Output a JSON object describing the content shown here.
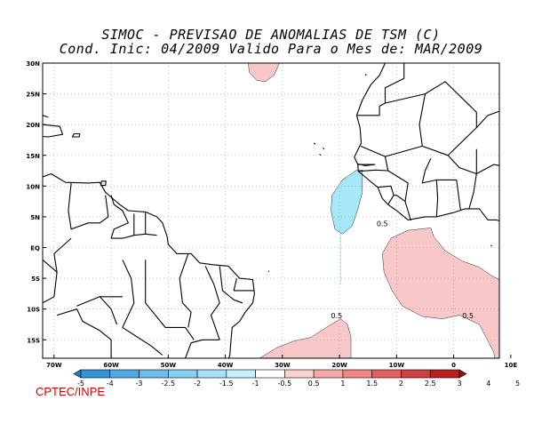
{
  "title": {
    "line1": "SIMOC - PREVISAO DE ANOMALIAS DE TSM (C)",
    "line2": "Cond. Inic: 04/2009   Valido Para o Mes de: MAR/2009"
  },
  "map": {
    "lon_range": [
      -72,
      8
    ],
    "lat_range": [
      -18,
      30
    ],
    "lat_ticks": [
      {
        "v": 30,
        "label": "30N"
      },
      {
        "v": 25,
        "label": "25N"
      },
      {
        "v": 20,
        "label": "20N"
      },
      {
        "v": 15,
        "label": "15N"
      },
      {
        "v": 10,
        "label": "10N"
      },
      {
        "v": 5,
        "label": "5N"
      },
      {
        "v": 0,
        "label": "EQ"
      },
      {
        "v": -5,
        "label": "5S"
      },
      {
        "v": -10,
        "label": "10S"
      },
      {
        "v": -15,
        "label": "15S"
      }
    ],
    "lon_ticks": [
      {
        "v": -70,
        "label": "70W"
      },
      {
        "v": -60,
        "label": "60W"
      },
      {
        "v": -50,
        "label": "50W"
      },
      {
        "v": -40,
        "label": "40W"
      },
      {
        "v": -30,
        "label": "30W"
      },
      {
        "v": -20,
        "label": "20W"
      },
      {
        "v": -10,
        "label": "10W"
      },
      {
        "v": 0,
        "label": "0"
      },
      {
        "v": 10,
        "label": "10E"
      }
    ],
    "contour_labels": [
      {
        "text": "0.5",
        "lon": -12.5,
        "lat": 3.5
      },
      {
        "text": "0.5",
        "lon": -20.5,
        "lat": -11.5
      },
      {
        "text": "0.5",
        "lon": 2.5,
        "lat": -11.5
      }
    ],
    "colors": {
      "positive_0_5_1": "#f8c8c8",
      "negative_0_5_1": "#a6e8f8",
      "land_outline": "#000000",
      "grid": "#9a9a9a"
    }
  },
  "colorbar": {
    "labels": [
      "-5",
      "-4",
      "-3",
      "-2.5",
      "-2",
      "-1.5",
      "-1",
      "-0.5",
      "0.5",
      "1",
      "1.5",
      "2",
      "2.5",
      "3",
      "4",
      "5"
    ],
    "colors": [
      "#1a7fc8",
      "#3594d6",
      "#52a8e2",
      "#6ebcea",
      "#88cef2",
      "#a6e0f7",
      "#c8f0fb",
      "#ffffff",
      "#fad2d2",
      "#f5aaaa",
      "#ef8585",
      "#e26060",
      "#d04040",
      "#b82020",
      "#981010"
    ]
  },
  "credit": "CPTEC/INPE"
}
